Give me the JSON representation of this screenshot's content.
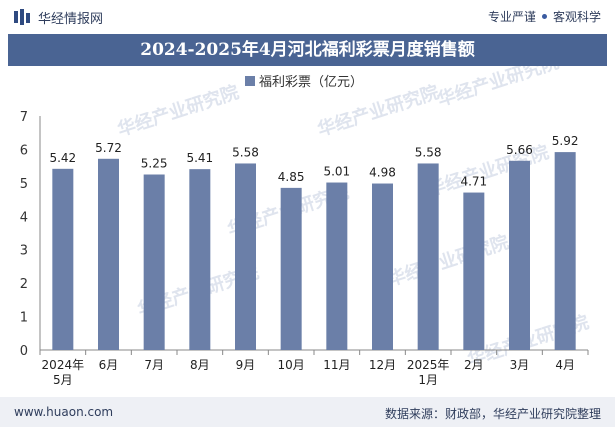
{
  "header": {
    "site_name": "华经情报网",
    "tagline_left": "专业严谨",
    "tagline_right": "客观科学"
  },
  "chart_data": {
    "type": "bar",
    "title": "2024-2025年4月河北福利彩票月度销售额",
    "series": [
      {
        "name": "福利彩票（亿元）",
        "values": [
          5.42,
          5.72,
          5.25,
          5.41,
          5.58,
          4.85,
          5.01,
          4.98,
          5.58,
          4.71,
          5.66,
          5.92
        ]
      }
    ],
    "categories": [
      [
        "2024年",
        "5月"
      ],
      [
        "6月"
      ],
      [
        "7月"
      ],
      [
        "8月"
      ],
      [
        "9月"
      ],
      [
        "10月"
      ],
      [
        "11月"
      ],
      [
        "12月"
      ],
      [
        "2025年",
        "1月"
      ],
      [
        "2月"
      ],
      [
        "3月"
      ],
      [
        "4月"
      ]
    ],
    "ylim": [
      0,
      7
    ],
    "yticks": [
      0,
      1,
      2,
      3,
      4,
      5,
      6,
      7
    ],
    "grid": false,
    "legend_position": "top-center",
    "bar_color": "#6b7fa8",
    "watermark": "华经产业研究院"
  },
  "footer": {
    "url": "www.huaon.com",
    "source": "数据来源：财政部，华经产业研究院整理"
  }
}
